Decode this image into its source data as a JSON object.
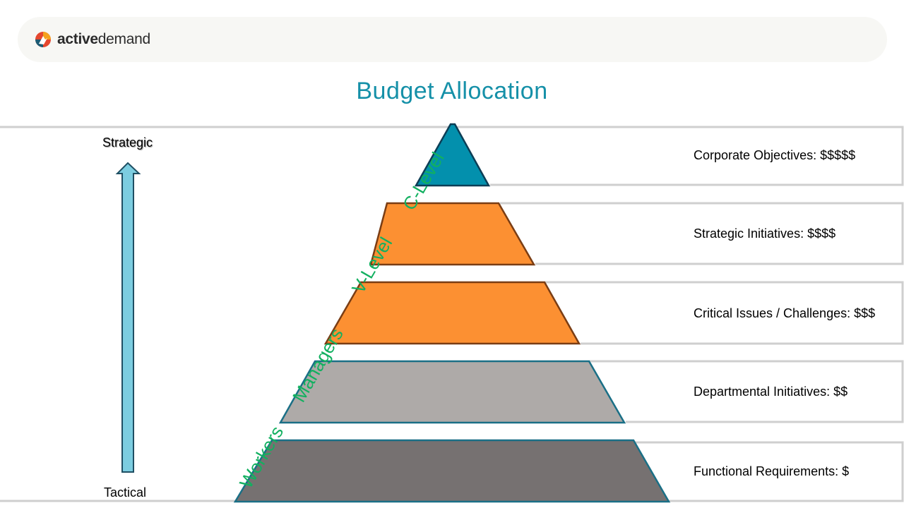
{
  "brand": {
    "name_bold": "active",
    "name_regular": "demand"
  },
  "title": "Budget Allocation",
  "axis": {
    "top_label": "Strategic",
    "bottom_label": "Tactical",
    "arrow_color": "#7ccde0"
  },
  "tiers": [
    {
      "level": "C-Level",
      "label": "Corporate Objectives: $$$$$",
      "fill": "#0390ad",
      "stroke": "#0c3e56"
    },
    {
      "level": "V-Level",
      "label": "Strategic Initiatives: $$$$",
      "fill": "#fc9032",
      "stroke": "#7a3d14"
    },
    {
      "level": "Managers",
      "label": "Critical Issues / Challenges: $$$",
      "fill": "#fc9032",
      "stroke": "#7a3d14"
    },
    {
      "level": "Workers",
      "label": "Departmental Initiatives: $$",
      "fill": "#aeaaa8",
      "stroke": "#1a6f86"
    },
    {
      "level": "",
      "label": "Functional Requirements: $",
      "fill": "#767171",
      "stroke": "#1a6f86"
    }
  ]
}
